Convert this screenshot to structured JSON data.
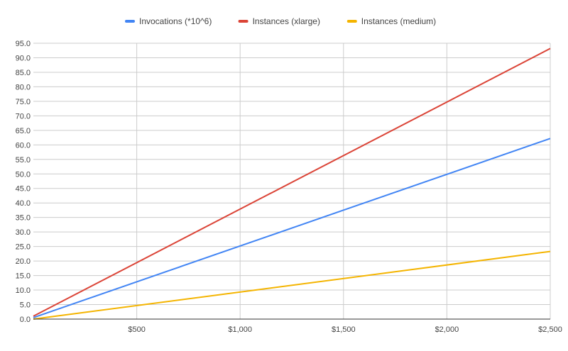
{
  "chart_data": {
    "type": "line",
    "title": "",
    "xlabel": "",
    "ylabel": "",
    "x": [
      0,
      2500
    ],
    "xlim": [
      0,
      2500
    ],
    "ylim": [
      0,
      95
    ],
    "y_ticks": [
      0,
      5,
      10,
      15,
      20,
      25,
      30,
      35,
      40,
      45,
      50,
      55,
      60,
      65,
      70,
      75,
      80,
      85,
      90,
      95
    ],
    "y_tick_labels": [
      "0.0",
      "5.0",
      "10.0",
      "15.0",
      "20.0",
      "25.0",
      "30.0",
      "35.0",
      "40.0",
      "45.0",
      "50.0",
      "55.0",
      "60.0",
      "65.0",
      "70.0",
      "75.0",
      "80.0",
      "85.0",
      "90.0",
      "95.0"
    ],
    "x_ticks": [
      500,
      1000,
      1500,
      2000,
      2500
    ],
    "x_tick_labels": [
      "$500",
      "$1,000",
      "$1,500",
      "$2,000",
      "$2,500"
    ],
    "grid": "vertical and horizontal",
    "legend_position": "top",
    "series": [
      {
        "name": "Invocations (*10^6)",
        "color": "#4285f4",
        "values": [
          0.5,
          62.2
        ]
      },
      {
        "name": "Instances (xlarge)",
        "color": "#db4437",
        "values": [
          1.0,
          93.2
        ]
      },
      {
        "name": "Instances (medium)",
        "color": "#f4b400",
        "values": [
          0.0,
          23.3
        ]
      }
    ]
  }
}
